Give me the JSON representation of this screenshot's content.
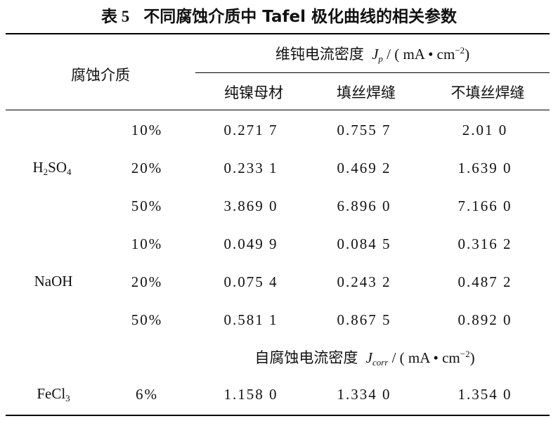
{
  "caption": {
    "number": "表 5",
    "text": "不同腐蚀介质中 Tafel 极化曲线的相关参数"
  },
  "header": {
    "medium": "腐蚀介质",
    "group_passive": {
      "label": "维钝电流密度",
      "symbol": "J",
      "symbol_sub": "p",
      "unit_open": " / ( mA • cm",
      "unit_sup": "−2",
      "unit_close": ")"
    },
    "columns": [
      "纯镍母材",
      "填丝焊缝",
      "不填丝焊缝"
    ]
  },
  "rows": [
    {
      "group": "H2SO4",
      "conc": "10%",
      "values": [
        "0.271 7",
        "0.755 7",
        "2.01 0"
      ]
    },
    {
      "conc": "20%",
      "values": [
        "0.233 1",
        "0.469 2",
        "1.639 0"
      ]
    },
    {
      "conc": "50%",
      "values": [
        "3.869 0",
        "6.896 0",
        "7.166 0"
      ]
    },
    {
      "group": "NaOH",
      "conc": "10%",
      "values": [
        "0.049 9",
        "0.084 5",
        "0.316 2"
      ]
    },
    {
      "conc": "20%",
      "values": [
        "0.075 4",
        "0.243 2",
        "0.487 2"
      ]
    },
    {
      "conc": "50%",
      "values": [
        "0.581 1",
        "0.867 5",
        "0.892 0"
      ]
    }
  ],
  "group_labels": {
    "h2so4": {
      "h": "H",
      "sub1": "2",
      "so": "SO",
      "sub2": "4"
    },
    "naoh": "NaOH",
    "fecl3": {
      "base": "FeCl",
      "sub": "3"
    }
  },
  "corrosion_header": {
    "label": "自腐蚀电流密度",
    "symbol": "J",
    "symbol_sub": "corr",
    "unit_open": " / ( mA • cm",
    "unit_sup": "−2",
    "unit_close": ")"
  },
  "fecl3_row": {
    "conc": "6%",
    "values": [
      "1.158 0",
      "1.334 0",
      "1.354 0"
    ]
  }
}
